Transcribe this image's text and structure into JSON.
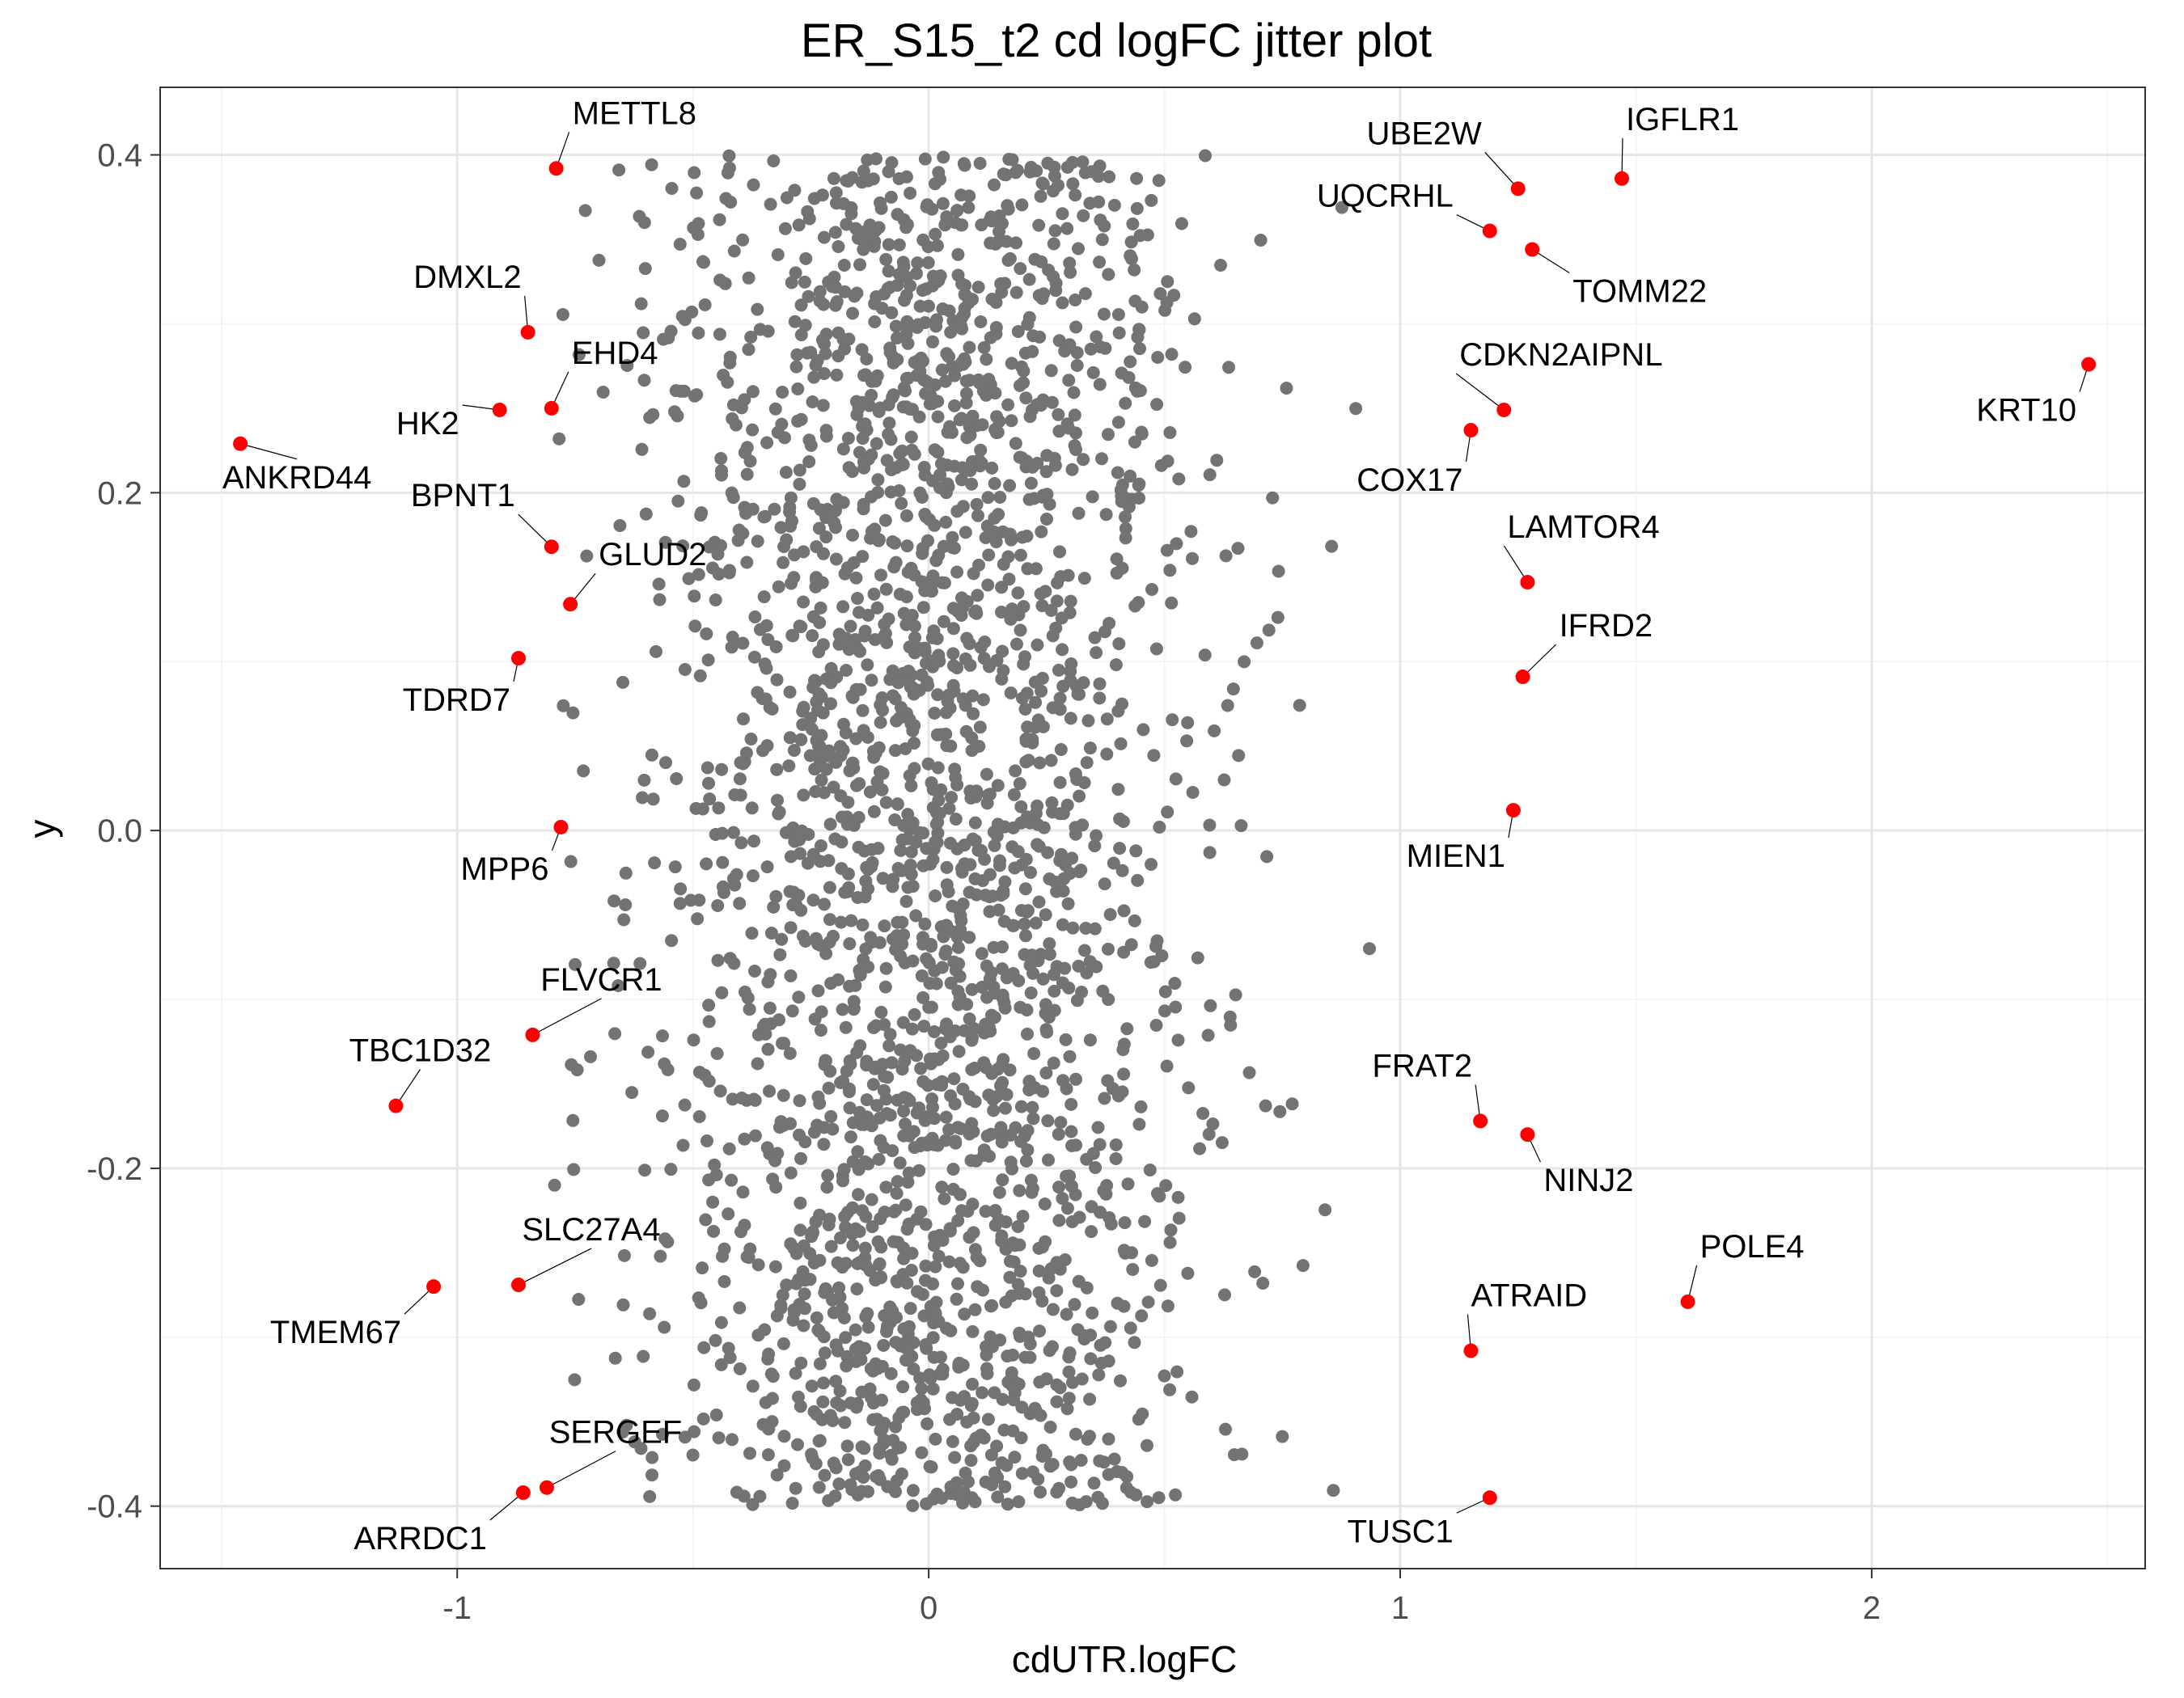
{
  "chart_data": {
    "type": "scatter",
    "title": "ER_S15_t2 cd logFC jitter plot",
    "xlabel": "cdUTR.logFC",
    "ylabel": "y",
    "xlim": [
      -1.63,
      2.58
    ],
    "ylim": [
      -0.437,
      0.44
    ],
    "x_ticks": [
      -1,
      0,
      1,
      2
    ],
    "x_tick_labels": [
      "-1",
      "0",
      "1",
      "2"
    ],
    "y_ticks": [
      -0.4,
      -0.2,
      0.0,
      0.2,
      0.4
    ],
    "y_tick_labels": [
      "-0.4",
      "-0.2",
      "0.0",
      "0.2",
      "0.4"
    ],
    "grid": true,
    "legend": "none",
    "colors": {
      "background_points": "#737373",
      "highlight_points": "#ff0000"
    },
    "background_point_count": 2600,
    "highlighted_points": [
      {
        "label": "METTL8",
        "x": -0.79,
        "y": 0.392
      },
      {
        "label": "DMXL2",
        "x": -0.85,
        "y": 0.295
      },
      {
        "label": "EHD4",
        "x": -0.8,
        "y": 0.25
      },
      {
        "label": "HK2",
        "x": -0.91,
        "y": 0.249
      },
      {
        "label": "ANKRD44",
        "x": -1.46,
        "y": 0.229
      },
      {
        "label": "BPNT1",
        "x": -0.8,
        "y": 0.168
      },
      {
        "label": "GLUD2",
        "x": -0.76,
        "y": 0.134
      },
      {
        "label": "TDRD7",
        "x": -0.87,
        "y": 0.102
      },
      {
        "label": "MPP6",
        "x": -0.78,
        "y": 0.002
      },
      {
        "label": "FLVCR1",
        "x": -0.84,
        "y": -0.121
      },
      {
        "label": "TBC1D32",
        "x": -1.13,
        "y": -0.163
      },
      {
        "label": "SLC27A4",
        "x": -0.87,
        "y": -0.269
      },
      {
        "label": "TMEM67",
        "x": -1.05,
        "y": -0.27
      },
      {
        "label": "SERGEF",
        "x": -0.81,
        "y": -0.389
      },
      {
        "label": "ARRDC1",
        "x": -0.86,
        "y": -0.392
      },
      {
        "label": "IGFLR1",
        "x": 1.47,
        "y": 0.386
      },
      {
        "label": "UBE2W",
        "x": 1.25,
        "y": 0.38
      },
      {
        "label": "UQCRHL",
        "x": 1.19,
        "y": 0.355
      },
      {
        "label": "TOMM22",
        "x": 1.28,
        "y": 0.344
      },
      {
        "label": "KRT10",
        "x": 2.46,
        "y": 0.276
      },
      {
        "label": "CDKN2AIPNL",
        "x": 1.22,
        "y": 0.249
      },
      {
        "label": "COX17",
        "x": 1.15,
        "y": 0.237
      },
      {
        "label": "LAMTOR4",
        "x": 1.27,
        "y": 0.147
      },
      {
        "label": "IFRD2",
        "x": 1.26,
        "y": 0.091
      },
      {
        "label": "MIEN1",
        "x": 1.24,
        "y": 0.012
      },
      {
        "label": "FRAT2",
        "x": 1.17,
        "y": -0.172
      },
      {
        "label": "NINJ2",
        "x": 1.27,
        "y": -0.18
      },
      {
        "label": "POLE4",
        "x": 1.61,
        "y": -0.279
      },
      {
        "label": "ATRAID",
        "x": 1.15,
        "y": -0.308
      },
      {
        "label": "TUSC1",
        "x": 1.19,
        "y": -0.395
      }
    ]
  }
}
